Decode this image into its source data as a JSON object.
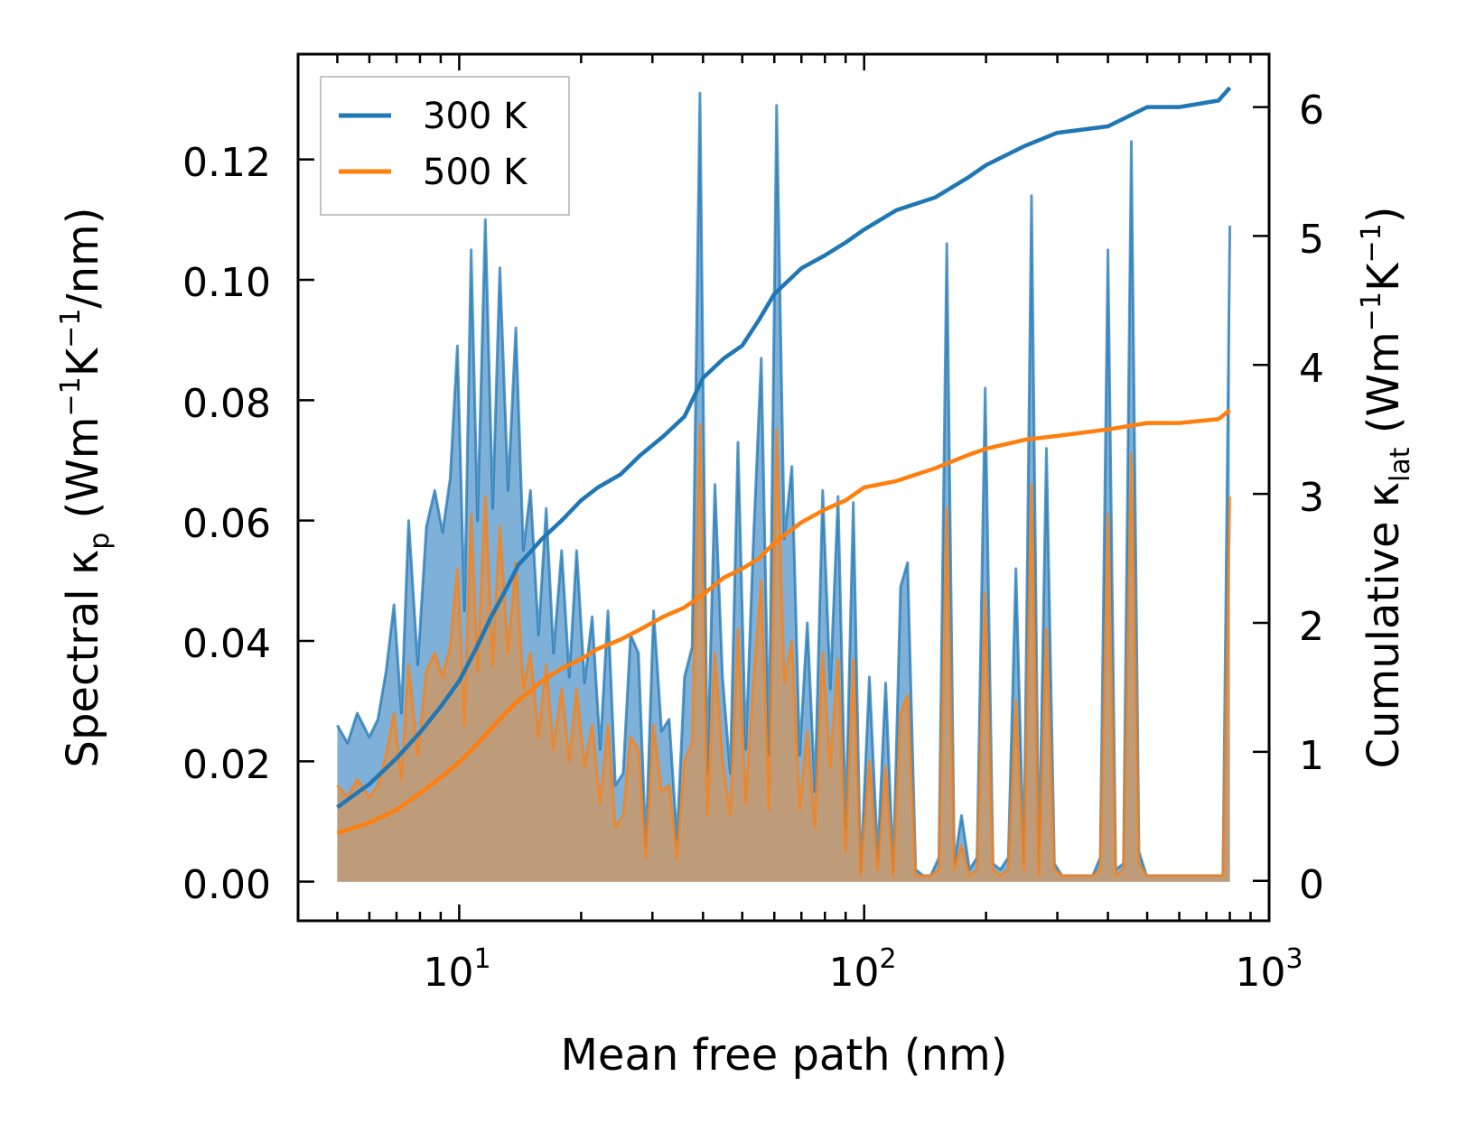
{
  "chart_data": {
    "type": "line",
    "xscale": "log",
    "xlabel": "Mean free path (nm)",
    "ylabel_left": {
      "text": "Spectral κ",
      "sub": "p",
      "unit": " (Wm",
      "sup1": "−1",
      "mid": "K",
      "sup2": "−1",
      "tail": "/nm)"
    },
    "ylabel_right": {
      "text": "Cumulative κ",
      "sub": "lat",
      "unit": " (Wm",
      "sup1": "−1",
      "mid": "K",
      "sup2": "−1",
      "tail": ")"
    },
    "xlim": [
      4.0,
      1000
    ],
    "ylim_left": [
      -0.0065,
      0.1375
    ],
    "ylim_right": [
      -0.31,
      6.41
    ],
    "xticks": [
      {
        "base": "10",
        "exp": "1",
        "value": 10
      },
      {
        "base": "10",
        "exp": "2",
        "value": 100
      },
      {
        "base": "10",
        "exp": "3",
        "value": 1000
      }
    ],
    "yticks_left": [
      "0.00",
      "0.02",
      "0.04",
      "0.06",
      "0.08",
      "0.10",
      "0.12"
    ],
    "yticks_right": [
      "0",
      "1",
      "2",
      "3",
      "4",
      "5",
      "6"
    ],
    "legend": {
      "location": "top-left",
      "entries": [
        "300 K",
        "500 K"
      ]
    },
    "colors": {
      "s300": "#1f77b4",
      "s500": "#ff7f0e",
      "fill300": "#7fb0d8",
      "fill500": "#c79a6f"
    },
    "spectral_300K": {
      "x": [
        5,
        5.3,
        5.6,
        6,
        6.3,
        6.6,
        6.9,
        7.2,
        7.5,
        7.9,
        8.3,
        8.7,
        9.1,
        9.5,
        9.9,
        10.3,
        10.7,
        11.1,
        11.6,
        12.1,
        12.6,
        13.2,
        13.8,
        14.4,
        15,
        15.7,
        16.4,
        17.1,
        17.9,
        18.7,
        19.5,
        20.4,
        21.3,
        22.3,
        23.3,
        24.3,
        25.4,
        26.5,
        27.7,
        28.9,
        30.2,
        31.6,
        33,
        34.5,
        36,
        37.6,
        39.3,
        41,
        42.8,
        44.7,
        46.7,
        48.8,
        51,
        53.3,
        55.7,
        58.2,
        60.8,
        63.5,
        66.3,
        69.3,
        72.4,
        75.6,
        79,
        82.5,
        86.2,
        90,
        94,
        98,
        103,
        108,
        113,
        118,
        123,
        128,
        134,
        140,
        146,
        153,
        160,
        167,
        174,
        182,
        190,
        199,
        208,
        217,
        227,
        237,
        248,
        259,
        270,
        282,
        295,
        308,
        322,
        336,
        351,
        367,
        383,
        400,
        418,
        437,
        457,
        477,
        498,
        520,
        543,
        567,
        592,
        618,
        646,
        675,
        705,
        736,
        769,
        800
      ],
      "y": [
        0.026,
        0.023,
        0.028,
        0.024,
        0.027,
        0.035,
        0.046,
        0.028,
        0.06,
        0.036,
        0.059,
        0.065,
        0.058,
        0.067,
        0.089,
        0.045,
        0.105,
        0.06,
        0.11,
        0.062,
        0.102,
        0.065,
        0.092,
        0.055,
        0.065,
        0.041,
        0.062,
        0.038,
        0.055,
        0.034,
        0.055,
        0.033,
        0.044,
        0.022,
        0.045,
        0.016,
        0.018,
        0.041,
        0.038,
        0.006,
        0.045,
        0.025,
        0.027,
        0.007,
        0.034,
        0.039,
        0.131,
        0.018,
        0.066,
        0.034,
        0.018,
        0.073,
        0.022,
        0.057,
        0.087,
        0.021,
        0.129,
        0.057,
        0.069,
        0.021,
        0.043,
        0.015,
        0.065,
        0.032,
        0.064,
        0.009,
        0.063,
        0.001,
        0.034,
        0.004,
        0.033,
        0.002,
        0.049,
        0.053,
        0.002,
        0.001,
        0.001,
        0.004,
        0.106,
        0.003,
        0.011,
        0.002,
        0.004,
        0.082,
        0.003,
        0.002,
        0.004,
        0.052,
        0.003,
        0.114,
        0.002,
        0.072,
        0.003,
        0.001,
        0.001,
        0.001,
        0.001,
        0.001,
        0.004,
        0.105,
        0.002,
        0.003,
        0.123,
        0.005,
        0.001,
        0.001,
        0.001,
        0.001,
        0.001,
        0.001,
        0.001,
        0.001,
        0.001,
        0.001,
        0.001,
        0.109
      ]
    },
    "spectral_500K": {
      "x": [
        5,
        5.3,
        5.6,
        6,
        6.3,
        6.6,
        6.9,
        7.2,
        7.5,
        7.9,
        8.3,
        8.7,
        9.1,
        9.5,
        9.9,
        10.3,
        10.7,
        11.1,
        11.6,
        12.1,
        12.6,
        13.2,
        13.8,
        14.4,
        15,
        15.7,
        16.4,
        17.1,
        17.9,
        18.7,
        19.5,
        20.4,
        21.3,
        22.3,
        23.3,
        24.3,
        25.4,
        26.5,
        27.7,
        28.9,
        30.2,
        31.6,
        33,
        34.5,
        36,
        37.6,
        39.3,
        41,
        42.8,
        44.7,
        46.7,
        48.8,
        51,
        53.3,
        55.7,
        58.2,
        60.8,
        63.5,
        66.3,
        69.3,
        72.4,
        75.6,
        79,
        82.5,
        86.2,
        90,
        94,
        98,
        103,
        108,
        113,
        118,
        123,
        128,
        134,
        140,
        146,
        153,
        160,
        167,
        174,
        182,
        190,
        199,
        208,
        217,
        227,
        237,
        248,
        259,
        270,
        282,
        295,
        308,
        322,
        336,
        351,
        367,
        383,
        400,
        418,
        437,
        457,
        477,
        498,
        520,
        543,
        567,
        592,
        618,
        646,
        675,
        705,
        736,
        769,
        800
      ],
      "y": [
        0.016,
        0.014,
        0.017,
        0.014,
        0.016,
        0.021,
        0.028,
        0.017,
        0.036,
        0.021,
        0.035,
        0.038,
        0.034,
        0.039,
        0.052,
        0.026,
        0.061,
        0.035,
        0.064,
        0.036,
        0.059,
        0.038,
        0.053,
        0.032,
        0.038,
        0.024,
        0.036,
        0.022,
        0.032,
        0.02,
        0.032,
        0.019,
        0.026,
        0.013,
        0.026,
        0.009,
        0.011,
        0.024,
        0.022,
        0.004,
        0.026,
        0.015,
        0.016,
        0.004,
        0.02,
        0.023,
        0.076,
        0.011,
        0.038,
        0.02,
        0.011,
        0.042,
        0.013,
        0.033,
        0.05,
        0.012,
        0.075,
        0.033,
        0.04,
        0.012,
        0.025,
        0.009,
        0.038,
        0.019,
        0.037,
        0.005,
        0.037,
        0.001,
        0.02,
        0.002,
        0.019,
        0.001,
        0.028,
        0.031,
        0.001,
        0.001,
        0.001,
        0.002,
        0.062,
        0.002,
        0.006,
        0.001,
        0.002,
        0.048,
        0.002,
        0.001,
        0.002,
        0.03,
        0.002,
        0.066,
        0.001,
        0.042,
        0.002,
        0.001,
        0.001,
        0.001,
        0.001,
        0.001,
        0.002,
        0.061,
        0.001,
        0.002,
        0.071,
        0.003,
        0.001,
        0.001,
        0.001,
        0.001,
        0.001,
        0.001,
        0.001,
        0.001,
        0.001,
        0.001,
        0.001,
        0.064
      ]
    },
    "cumulative_300K": {
      "x": [
        5,
        6,
        7,
        8,
        9,
        10,
        11,
        12,
        13,
        14,
        15,
        16,
        18,
        20,
        22,
        25,
        28,
        32,
        36,
        40,
        45,
        50,
        55,
        60,
        70,
        80,
        90,
        100,
        120,
        150,
        180,
        200,
        250,
        300,
        400,
        500,
        600,
        750,
        800
      ],
      "y": [
        0.57,
        0.75,
        0.95,
        1.15,
        1.35,
        1.55,
        1.8,
        2.05,
        2.25,
        2.45,
        2.55,
        2.65,
        2.8,
        2.95,
        3.05,
        3.15,
        3.3,
        3.45,
        3.6,
        3.9,
        4.05,
        4.15,
        4.35,
        4.55,
        4.75,
        4.85,
        4.95,
        5.05,
        5.2,
        5.3,
        5.45,
        5.55,
        5.7,
        5.8,
        5.85,
        6.0,
        6.0,
        6.05,
        6.15
      ]
    },
    "cumulative_500K": {
      "x": [
        5,
        6,
        7,
        8,
        9,
        10,
        11,
        12,
        13,
        14,
        15,
        16,
        18,
        20,
        22,
        25,
        28,
        32,
        36,
        40,
        45,
        50,
        55,
        60,
        70,
        80,
        90,
        100,
        120,
        150,
        180,
        200,
        250,
        300,
        400,
        500,
        600,
        750,
        800
      ],
      "y": [
        0.37,
        0.45,
        0.55,
        0.68,
        0.8,
        0.92,
        1.05,
        1.18,
        1.3,
        1.4,
        1.47,
        1.55,
        1.65,
        1.72,
        1.8,
        1.87,
        1.95,
        2.05,
        2.12,
        2.22,
        2.35,
        2.42,
        2.5,
        2.62,
        2.78,
        2.88,
        2.95,
        3.05,
        3.1,
        3.2,
        3.3,
        3.35,
        3.42,
        3.45,
        3.5,
        3.55,
        3.55,
        3.58,
        3.65
      ]
    }
  }
}
